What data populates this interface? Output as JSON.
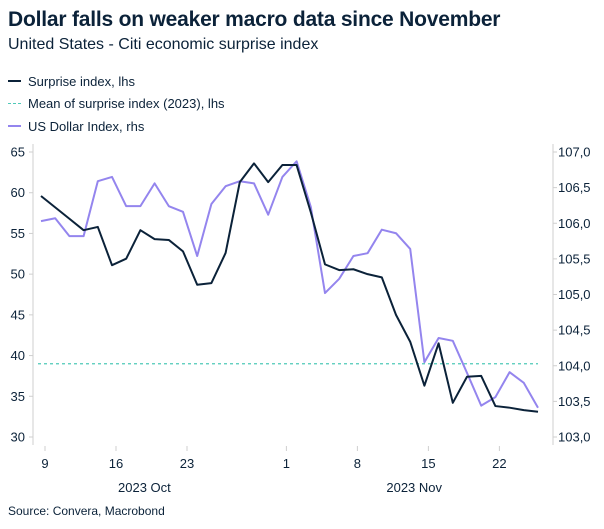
{
  "title": "Dollar falls on weaker macro data since November",
  "subtitle": "United States - Citi economic surprise index",
  "source": "Source: Convera, Macrobond",
  "colors": {
    "surprise": "#0b2239",
    "mean": "#4fc9b8",
    "dxy": "#9485ee",
    "axis": "#cfcfcf"
  },
  "chart_data": {
    "type": "line",
    "legend_position": "top-left",
    "grid": false,
    "x": [
      "2023-10-09",
      "2023-10-10",
      "2023-10-11",
      "2023-10-12",
      "2023-10-13",
      "2023-10-16",
      "2023-10-17",
      "2023-10-18",
      "2023-10-19",
      "2023-10-20",
      "2023-10-23",
      "2023-10-24",
      "2023-10-25",
      "2023-10-26",
      "2023-10-27",
      "2023-10-30",
      "2023-10-31",
      "2023-11-01",
      "2023-11-02",
      "2023-11-03",
      "2023-11-06",
      "2023-11-07",
      "2023-11-08",
      "2023-11-09",
      "2023-11-10",
      "2023-11-13",
      "2023-11-14",
      "2023-11-15",
      "2023-11-16",
      "2023-11-17",
      "2023-11-20",
      "2023-11-21",
      "2023-11-22",
      "2023-11-23",
      "2023-11-24",
      "2023-11-27"
    ],
    "x_tick_labels": [
      {
        "label": "9",
        "index": 0
      },
      {
        "label": "16",
        "index": 5
      },
      {
        "label": "23",
        "index": 10
      },
      {
        "label": "1",
        "index": 17
      },
      {
        "label": "8",
        "index": 22
      },
      {
        "label": "15",
        "index": 27
      },
      {
        "label": "22",
        "index": 32
      }
    ],
    "x_group_labels": [
      {
        "label": "2023 Oct",
        "index": 7
      },
      {
        "label": "2023 Nov",
        "index": 26
      }
    ],
    "y_left": {
      "lim": [
        30,
        65
      ],
      "ticks": [
        "30",
        "35",
        "40",
        "45",
        "50",
        "55",
        "60",
        "65"
      ]
    },
    "y_right": {
      "lim": [
        103,
        107
      ],
      "ticks": [
        "103,0",
        "103,5",
        "104,0",
        "104,5",
        "105,0",
        "105,5",
        "106,0",
        "106,5",
        "107,0"
      ]
    },
    "series": [
      {
        "name": "Surprise index, lhs",
        "axis": "left",
        "style": "solid",
        "values": [
          59.6,
          58.2,
          56.8,
          55.4,
          55.8,
          51.1,
          51.9,
          55.4,
          54.3,
          54.2,
          52.8,
          48.7,
          48.9,
          52.6,
          61.3,
          63.6,
          61.3,
          63.4,
          63.4,
          57.6,
          51.2,
          50.5,
          50.6,
          50.0,
          49.6,
          45.0,
          41.7,
          36.3,
          41.5,
          34.2,
          37.4,
          37.5,
          33.8,
          33.6,
          33.3,
          33.1
        ]
      },
      {
        "name": "Mean of surprise index (2023), lhs",
        "axis": "left",
        "style": "dashed",
        "value": 39.0
      },
      {
        "name": "US Dollar Index, rhs",
        "axis": "right",
        "style": "solid",
        "values": [
          106.03,
          106.07,
          105.82,
          105.82,
          106.59,
          106.65,
          106.24,
          106.24,
          106.56,
          106.24,
          106.16,
          105.54,
          106.27,
          106.52,
          106.59,
          106.56,
          106.12,
          106.65,
          106.87,
          106.23,
          105.02,
          105.22,
          105.54,
          105.58,
          105.91,
          105.86,
          105.64,
          104.05,
          104.39,
          104.35,
          103.9,
          103.44,
          103.56,
          103.91,
          103.76,
          103.41
        ]
      }
    ]
  }
}
